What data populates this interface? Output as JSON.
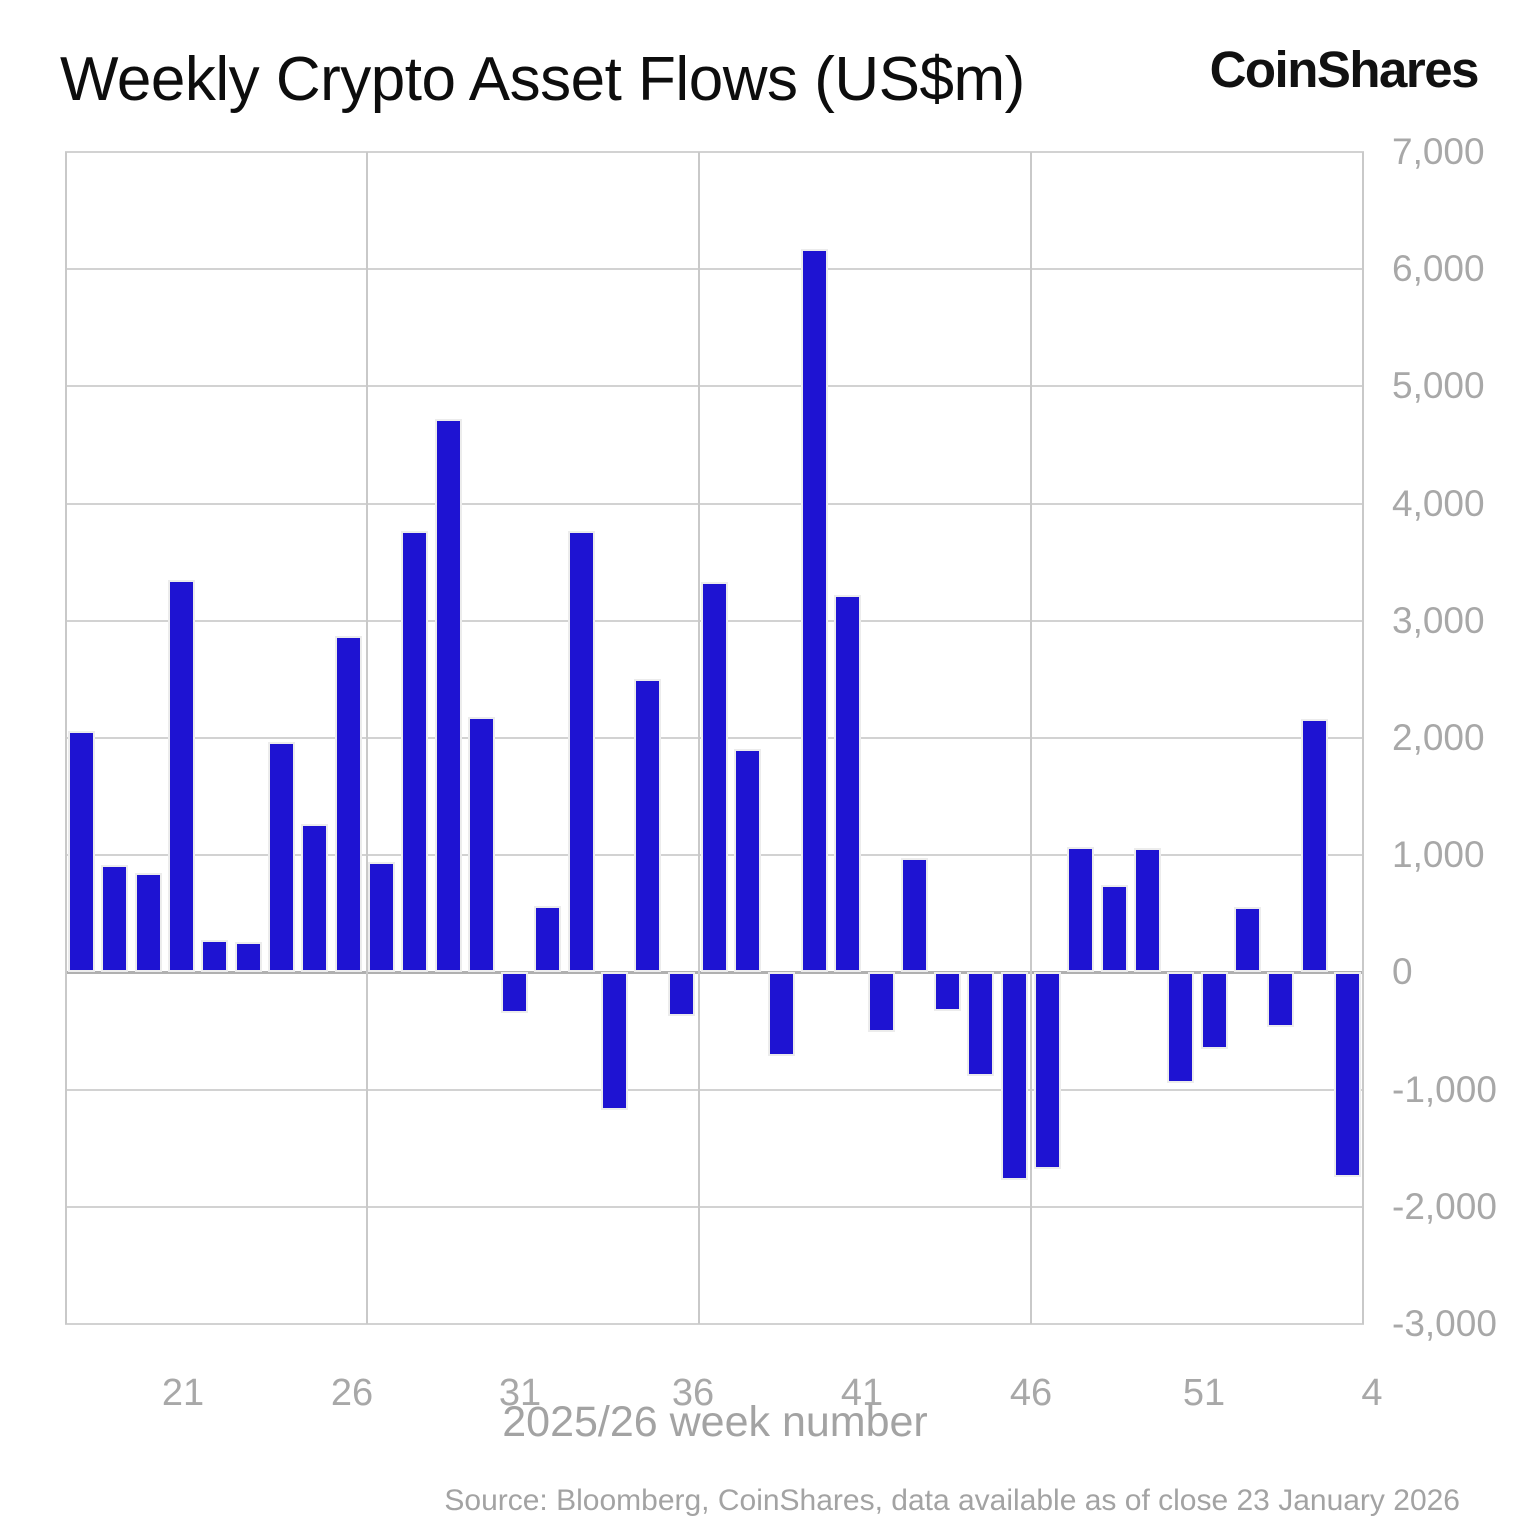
{
  "title": "Weekly Crypto Asset Flows (US$m)",
  "logo": "CoinShares",
  "source": "Source: Bloomberg, CoinShares, data available as of close 23 January 2026",
  "chart_data": {
    "type": "bar",
    "title": "Weekly Crypto Asset Flows (US$m)",
    "xlabel": "2025/26 week number",
    "ylabel": "",
    "ylim": [
      -3000,
      7000
    ],
    "grid": true,
    "legend": "none",
    "bar_color": "#1e13d2",
    "categories": [
      "18",
      "19",
      "20",
      "21",
      "22",
      "23",
      "24",
      "25",
      "26",
      "27",
      "28",
      "29",
      "30",
      "31",
      "32",
      "33",
      "34",
      "35",
      "36",
      "37",
      "38",
      "39",
      "40",
      "41",
      "42",
      "43",
      "44",
      "45",
      "46",
      "47",
      "48",
      "49",
      "50",
      "51",
      "52",
      "1",
      "2",
      "3",
      "4"
    ],
    "values": [
      2060,
      920,
      850,
      3350,
      280,
      260,
      1970,
      1270,
      2870,
      940,
      3770,
      4720,
      2180,
      -350,
      570,
      3770,
      -1170,
      2500,
      -370,
      3330,
      1910,
      -710,
      6170,
      3220,
      -510,
      980,
      -330,
      -880,
      -1770,
      -1680,
      1070,
      750,
      1060,
      -940,
      -650,
      560,
      -470,
      2160,
      -1750
    ],
    "yticks": [
      7000,
      6000,
      5000,
      4000,
      3000,
      2000,
      1000,
      0,
      -1000,
      -2000,
      -3000
    ],
    "ytick_labels": [
      "7,000",
      "6,000",
      "5,000",
      "4,000",
      "3,000",
      "2,000",
      "1,000",
      "0",
      "-1,000",
      "-2,000",
      "-3,000"
    ],
    "xticks_shown": [
      "21",
      "26",
      "31",
      "36",
      "41",
      "46",
      "51",
      "4"
    ]
  },
  "colors": {
    "bar": "#1e13d2",
    "gridline": "#d2d2d2",
    "zero_line": "#b0b0b0",
    "axis_text": "#a8a8a8",
    "title_text": "#0d0d0d"
  }
}
